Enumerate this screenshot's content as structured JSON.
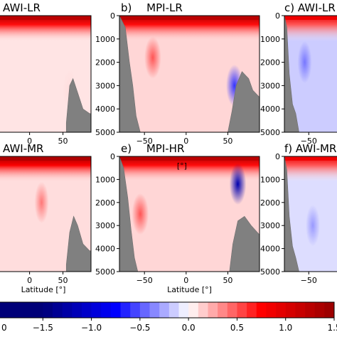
{
  "chart_data": {
    "type": "heatmap",
    "figure": "ocean section anomaly panels (depth vs latitude), shared diverging colorbar",
    "panels": [
      {
        "label": "",
        "title": "AWI-LR",
        "x_ticks": [
          "0",
          "50"
        ],
        "y_ticks": [],
        "xlabel": "",
        "visible_xlim": [
          -45,
          90
        ],
        "ylim": [
          5000,
          0
        ],
        "surface_anomaly": 1.3,
        "deep_anomaly": 0.08,
        "bathymetry": [
          [
            55,
            4600
          ],
          [
            60,
            3000
          ],
          [
            65,
            2700
          ],
          [
            72,
            3300
          ],
          [
            80,
            4000
          ],
          [
            90,
            4200
          ]
        ],
        "features": [
          {
            "lat": 60,
            "depth": 3200,
            "value": 0.1
          }
        ]
      },
      {
        "label": "b)",
        "title": "MPI-LR",
        "x_ticks": [
          "−50",
          "0",
          "50"
        ],
        "y_ticks": [
          "0",
          "1000",
          "2000",
          "3000",
          "4000",
          "5000"
        ],
        "xlabel": "",
        "visible_xlim": [
          -80,
          88
        ],
        "ylim": [
          5000,
          0
        ],
        "surface_anomaly": 1.3,
        "deep_anomaly": 0.12,
        "bathymetry": [
          [
            -80,
            0
          ],
          [
            -73,
            500
          ],
          [
            -68,
            2000
          ],
          [
            -64,
            3000
          ],
          [
            -60,
            4300
          ],
          [
            -55,
            5000
          ],
          [
            50,
            5000
          ],
          [
            55,
            4100
          ],
          [
            60,
            3000
          ],
          [
            67,
            2400
          ],
          [
            75,
            2700
          ],
          [
            80,
            3200
          ],
          [
            88,
            3500
          ]
        ],
        "features": [
          {
            "lat": 58,
            "depth": 3000,
            "value": -0.6
          },
          {
            "lat": -40,
            "depth": 1800,
            "value": 0.5
          }
        ]
      },
      {
        "label": "c)",
        "title": "AWI-LR",
        "x_ticks": [
          "−50"
        ],
        "y_ticks": [
          "0",
          "1000",
          "2000",
          "3000",
          "4000",
          "5000"
        ],
        "xlabel": "",
        "visible_xlim": [
          -80,
          -30
        ],
        "ylim": [
          5000,
          0
        ],
        "surface_anomaly": 0.9,
        "deep_anomaly": -0.15,
        "bathymetry": [
          [
            -80,
            0
          ],
          [
            -77,
            500
          ],
          [
            -74,
            2500
          ],
          [
            -70,
            3800
          ],
          [
            -66,
            4200
          ],
          [
            -62,
            5000
          ]
        ],
        "features": [
          {
            "lat": -55,
            "depth": 2000,
            "value": -0.4
          }
        ]
      },
      {
        "label": "",
        "title": "AWI-MR",
        "x_ticks": [
          "0",
          "50"
        ],
        "y_ticks": [],
        "xlabel": "Latitude [°]",
        "visible_xlim": [
          -45,
          90
        ],
        "ylim": [
          5000,
          0
        ],
        "surface_anomaly": 1.4,
        "deep_anomaly": 0.1,
        "bathymetry": [
          [
            55,
            4700
          ],
          [
            60,
            3300
          ],
          [
            66,
            2600
          ],
          [
            72,
            3000
          ],
          [
            80,
            3800
          ],
          [
            90,
            4100
          ]
        ],
        "features": [
          {
            "lat": 18,
            "depth": 2000,
            "value": 0.4
          }
        ]
      },
      {
        "label": "e)",
        "title": "MPI-HR",
        "x_ticks": [
          "−50",
          "0",
          "50"
        ],
        "y_ticks": [
          "0",
          "1000",
          "2000",
          "3000",
          "4000",
          "5000"
        ],
        "xlabel": "Latitude [°]",
        "annotation": "[°]",
        "visible_xlim": [
          -80,
          88
        ],
        "ylim": [
          5000,
          0
        ],
        "surface_anomaly": 1.3,
        "deep_anomaly": 0.12,
        "bathymetry": [
          [
            -80,
            0
          ],
          [
            -75,
            500
          ],
          [
            -70,
            1800
          ],
          [
            -66,
            3200
          ],
          [
            -62,
            4400
          ],
          [
            -58,
            5000
          ],
          [
            52,
            5000
          ],
          [
            56,
            3800
          ],
          [
            62,
            2800
          ],
          [
            70,
            2600
          ],
          [
            78,
            3000
          ],
          [
            88,
            3400
          ]
        ],
        "features": [
          {
            "lat": 62,
            "depth": 1200,
            "value": -1.2
          },
          {
            "lat": -55,
            "depth": 2500,
            "value": 0.5
          }
        ]
      },
      {
        "label": "f)",
        "title": "AWI-MR",
        "x_ticks": [
          "−50"
        ],
        "y_ticks": [
          "0",
          "1000",
          "2000",
          "3000",
          "4000",
          "5000"
        ],
        "xlabel": "",
        "visible_xlim": [
          -80,
          -30
        ],
        "ylim": [
          5000,
          0
        ],
        "surface_anomaly": 0.9,
        "deep_anomaly": -0.1,
        "bathymetry": [
          [
            -80,
            0
          ],
          [
            -77,
            600
          ],
          [
            -74,
            2600
          ],
          [
            -70,
            3900
          ],
          [
            -66,
            4400
          ],
          [
            -62,
            5000
          ]
        ],
        "features": [
          {
            "lat": -45,
            "depth": 3000,
            "value": -0.3
          }
        ]
      }
    ],
    "colorbar": {
      "colormap": "seismic",
      "range": [
        -2.0,
        1.5
      ],
      "ticks": [
        "−1.5",
        "−1.0",
        "−0.5",
        "0.0",
        "0.5",
        "1.0",
        "1.5"
      ],
      "tick_values": [
        -1.5,
        -1.0,
        -0.5,
        0.0,
        0.5,
        1.0,
        1.5
      ],
      "n_levels": 35,
      "extra_left_label": "0"
    }
  },
  "colors": {
    "bathymetry": "#808080",
    "negative": "#0000cc",
    "positive": "#cc0000",
    "zero": "#ffffff"
  }
}
